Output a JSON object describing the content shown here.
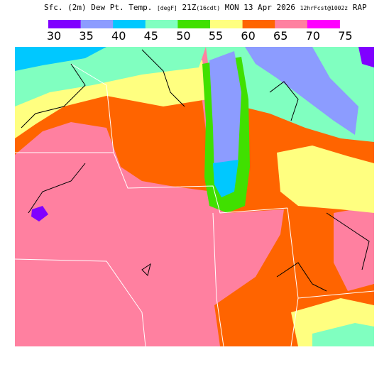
{
  "header": {
    "title_parts": [
      "Sfc. (2m) Dew Pt. Temp.",
      "[degF]",
      "21Z",
      "(16cdt)",
      "MON 13 Apr 2026",
      "12hrFcst@1002z",
      "RAP"
    ]
  },
  "colorbar": {
    "labels": [
      30,
      35,
      40,
      45,
      50,
      55,
      60,
      65,
      70,
      75
    ],
    "colors": [
      "#8000ff",
      "#8c9cff",
      "#00c8ff",
      "#80ffc0",
      "#40e000",
      "#ffff80",
      "#ff6400",
      "#ff80a0",
      "#ff00ff"
    ]
  }
}
